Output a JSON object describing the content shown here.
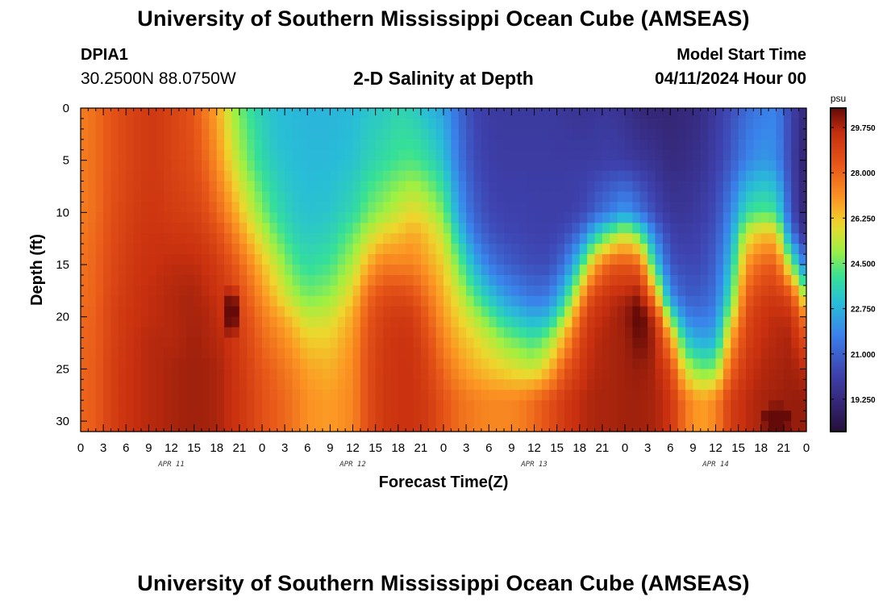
{
  "header": {
    "title": "University of Southern Mississippi Ocean Cube (AMSEAS)",
    "station": "DPIA1",
    "coordinates": "30.2500N  88.0750W",
    "subtitle": "2-D Salinity at Depth",
    "model_start_label": "Model Start Time",
    "model_start_value": "04/11/2024 Hour 00"
  },
  "footer": {
    "title": "University of Southern Mississippi Ocean Cube (AMSEAS)"
  },
  "chart_data": {
    "type": "heatmap",
    "title": "2-D Salinity at Depth",
    "xlabel": "Forecast Time(Z)",
    "ylabel": "Depth (ft)",
    "xlim": [
      0,
      96
    ],
    "ylim": [
      31,
      0
    ],
    "x_major_step": 3,
    "x_tick_labels": [
      "0",
      "3",
      "6",
      "9",
      "12",
      "15",
      "18",
      "21",
      "0",
      "3",
      "6",
      "9",
      "12",
      "15",
      "18",
      "21",
      "0",
      "3",
      "6",
      "9",
      "12",
      "15",
      "18",
      "21",
      "0",
      "3",
      "6",
      "9",
      "12",
      "15",
      "18",
      "21",
      "0"
    ],
    "date_labels": [
      {
        "hour": 12,
        "text": "APR 11"
      },
      {
        "hour": 36,
        "text": "APR 12"
      },
      {
        "hour": 60,
        "text": "APR 13"
      },
      {
        "hour": 84,
        "text": "APR 14"
      }
    ],
    "y_ticks": [
      0,
      5,
      10,
      15,
      20,
      25,
      30
    ],
    "y_tick_labels": [
      "0",
      "5",
      "10",
      "15",
      "20",
      "25",
      "30"
    ],
    "colorbar": {
      "unit": "psu",
      "range": [
        18.0,
        30.5
      ],
      "ticks": [
        29.75,
        28.0,
        26.25,
        24.5,
        22.75,
        21.0,
        19.25
      ],
      "tick_labels": [
        "29.750",
        "28.000",
        "26.250",
        "24.500",
        "22.750",
        "21.000",
        "19.250"
      ]
    },
    "grid": {
      "times": [
        0,
        2,
        4,
        6,
        8,
        10,
        12,
        14,
        15,
        16,
        18,
        20,
        22,
        24,
        26,
        28,
        30,
        33,
        36,
        38,
        40,
        42,
        44,
        46,
        48,
        50,
        52,
        54,
        56,
        58,
        60,
        62,
        64,
        66,
        67,
        68,
        70,
        72,
        74,
        76,
        78,
        80,
        82,
        84,
        86,
        88,
        90,
        92,
        94,
        96
      ],
      "depths": [
        0,
        5,
        10,
        12,
        15,
        18,
        20,
        22,
        25,
        28,
        31
      ],
      "salinity": [
        [
          27.5,
          27.5,
          27.5,
          27.6,
          27.7,
          27.8,
          27.9,
          28.0,
          28.0,
          28.0,
          28.0
        ],
        [
          27.8,
          27.8,
          27.8,
          27.9,
          28.0,
          28.0,
          28.1,
          28.1,
          28.2,
          28.2,
          28.2
        ],
        [
          28.4,
          28.4,
          28.5,
          28.6,
          28.7,
          28.8,
          28.9,
          28.9,
          29.0,
          29.0,
          29.0
        ],
        [
          28.8,
          28.8,
          28.9,
          29.0,
          29.1,
          29.2,
          29.3,
          29.3,
          29.4,
          29.4,
          29.4
        ],
        [
          29.1,
          29.1,
          29.2,
          29.3,
          29.4,
          29.5,
          29.5,
          29.6,
          29.6,
          29.6,
          29.6
        ],
        [
          29.2,
          29.2,
          29.3,
          29.4,
          29.5,
          29.6,
          29.6,
          29.7,
          29.7,
          29.7,
          29.7
        ],
        [
          28.9,
          28.9,
          29.1,
          29.3,
          29.6,
          29.7,
          29.7,
          29.7,
          29.8,
          29.8,
          29.8
        ],
        [
          28.6,
          28.7,
          29.0,
          29.3,
          29.6,
          29.8,
          29.8,
          29.8,
          29.9,
          29.9,
          29.9
        ],
        [
          28.3,
          28.5,
          28.9,
          29.2,
          29.6,
          29.8,
          29.8,
          29.9,
          29.9,
          29.9,
          29.9
        ],
        [
          27.8,
          28.2,
          28.8,
          29.1,
          29.5,
          29.7,
          29.8,
          29.8,
          29.9,
          29.9,
          29.9
        ],
        [
          26.8,
          27.2,
          28.0,
          28.6,
          29.2,
          29.5,
          29.6,
          29.7,
          29.8,
          29.8,
          29.8
        ],
        [
          25.2,
          25.8,
          27.0,
          27.6,
          28.5,
          29.0,
          29.2,
          29.4,
          29.5,
          29.5,
          29.5
        ],
        [
          24.1,
          24.6,
          25.8,
          26.5,
          27.5,
          28.2,
          28.6,
          28.8,
          29.0,
          29.1,
          29.1
        ],
        [
          23.4,
          23.7,
          24.7,
          25.4,
          26.4,
          27.1,
          27.6,
          27.9,
          28.3,
          28.5,
          28.5
        ],
        [
          23.0,
          23.2,
          23.8,
          24.4,
          25.4,
          26.2,
          26.9,
          27.4,
          27.9,
          28.1,
          28.1
        ],
        [
          22.9,
          23.0,
          23.3,
          23.6,
          24.3,
          25.2,
          26.2,
          26.8,
          27.4,
          27.7,
          27.7
        ],
        [
          22.8,
          22.9,
          23.1,
          23.3,
          23.8,
          24.6,
          25.4,
          26.1,
          26.8,
          27.1,
          27.1
        ],
        [
          22.8,
          22.9,
          23.2,
          23.5,
          24.1,
          24.9,
          25.6,
          26.1,
          26.6,
          26.9,
          26.9
        ],
        [
          22.9,
          23.1,
          23.7,
          24.4,
          25.2,
          26.1,
          26.7,
          27.0,
          27.2,
          27.3,
          27.3
        ],
        [
          23.2,
          23.5,
          24.5,
          25.3,
          26.6,
          27.9,
          28.3,
          28.5,
          28.6,
          28.6,
          28.6
        ],
        [
          23.3,
          23.8,
          25.0,
          26.0,
          27.5,
          28.6,
          29.0,
          29.1,
          29.2,
          29.2,
          29.2
        ],
        [
          23.6,
          24.1,
          25.5,
          26.3,
          27.4,
          28.8,
          29.2,
          29.4,
          29.4,
          29.4,
          29.4
        ],
        [
          23.4,
          24.2,
          26.0,
          26.7,
          27.4,
          28.5,
          29.1,
          29.3,
          29.4,
          29.4,
          29.4
        ],
        [
          22.9,
          23.8,
          25.5,
          26.2,
          26.8,
          27.6,
          28.1,
          28.5,
          28.9,
          29.1,
          29.1
        ],
        [
          22.4,
          23.1,
          24.6,
          25.4,
          26.1,
          26.6,
          26.9,
          27.3,
          27.9,
          28.4,
          28.4
        ],
        [
          21.2,
          21.5,
          22.4,
          23.3,
          24.6,
          25.6,
          26.1,
          26.5,
          27.1,
          27.8,
          27.8
        ],
        [
          20.3,
          20.5,
          21.0,
          21.5,
          22.8,
          24.3,
          25.3,
          26.0,
          26.6,
          27.5,
          27.5
        ],
        [
          20.0,
          20.1,
          20.4,
          20.7,
          21.6,
          23.2,
          24.4,
          25.4,
          26.3,
          27.3,
          27.3
        ],
        [
          19.9,
          20.0,
          20.2,
          20.4,
          21.0,
          22.3,
          23.5,
          24.7,
          26.0,
          27.3,
          27.3
        ],
        [
          19.9,
          20.0,
          20.2,
          20.3,
          20.7,
          21.8,
          23.0,
          24.3,
          25.7,
          27.4,
          27.4
        ],
        [
          19.9,
          20.0,
          20.1,
          20.2,
          20.5,
          21.4,
          22.6,
          23.9,
          25.5,
          27.9,
          27.9
        ],
        [
          19.9,
          20.0,
          20.1,
          20.2,
          20.5,
          21.6,
          23.0,
          24.7,
          26.4,
          28.5,
          28.5
        ],
        [
          19.8,
          20.0,
          20.1,
          20.4,
          21.4,
          23.3,
          25.0,
          26.6,
          28.2,
          29.2,
          29.2
        ],
        [
          19.7,
          20.0,
          20.3,
          21.2,
          23.6,
          26.3,
          27.8,
          28.6,
          29.2,
          29.6,
          29.6
        ],
        [
          19.7,
          20.0,
          20.5,
          22.1,
          25.3,
          28.0,
          29.0,
          29.3,
          29.5,
          29.7,
          29.7
        ],
        [
          19.8,
          20.0,
          21.0,
          23.1,
          26.8,
          28.9,
          29.4,
          29.6,
          29.7,
          29.8,
          29.8
        ],
        [
          19.8,
          20.1,
          21.6,
          24.4,
          28.2,
          29.5,
          29.7,
          29.8,
          29.8,
          29.8,
          29.8
        ],
        [
          19.6,
          20.0,
          22.3,
          25.5,
          28.4,
          29.7,
          30.0,
          29.9,
          29.9,
          29.9,
          29.9
        ],
        [
          19.2,
          19.8,
          21.4,
          24.2,
          28.0,
          30.1,
          30.8,
          30.5,
          30.0,
          29.9,
          29.9
        ],
        [
          19.1,
          19.6,
          20.4,
          21.5,
          23.5,
          27.0,
          29.3,
          29.8,
          29.8,
          29.8,
          29.8
        ],
        [
          19.1,
          19.3,
          19.8,
          20.2,
          20.7,
          22.0,
          24.5,
          27.0,
          28.8,
          29.4,
          29.4
        ],
        [
          19.2,
          19.4,
          19.8,
          20.0,
          20.4,
          20.9,
          21.8,
          23.2,
          25.6,
          27.6,
          27.6
        ],
        [
          19.4,
          19.6,
          20.0,
          20.2,
          20.4,
          20.9,
          21.5,
          22.4,
          24.5,
          26.8,
          26.8
        ],
        [
          19.9,
          20.1,
          20.5,
          20.7,
          21.0,
          21.4,
          21.9,
          22.7,
          24.7,
          27.3,
          27.3
        ],
        [
          20.5,
          20.8,
          21.8,
          22.3,
          23.1,
          24.0,
          25.3,
          26.7,
          28.0,
          29.1,
          29.1
        ],
        [
          21.2,
          21.7,
          23.8,
          25.4,
          27.0,
          28.1,
          28.6,
          28.9,
          29.3,
          29.6,
          29.6
        ],
        [
          21.6,
          22.2,
          24.3,
          26.3,
          28.0,
          29.0,
          29.4,
          29.5,
          29.7,
          29.8,
          29.8
        ],
        [
          21.8,
          22.0,
          24.0,
          26.2,
          28.2,
          29.2,
          29.6,
          29.7,
          29.8,
          29.9,
          29.9
        ],
        [
          20.2,
          20.2,
          20.6,
          21.5,
          24.8,
          28.6,
          29.5,
          29.8,
          29.9,
          30.0,
          30.0
        ],
        [
          19.1,
          18.8,
          18.8,
          19.3,
          21.3,
          24.8,
          27.2,
          28.4,
          29.6,
          30.0,
          30.0
        ]
      ],
      "hotspots": [
        {
          "t": 20,
          "d": 19.5,
          "r_t": 0.9,
          "r_d": 3.5,
          "value": 31.6
        },
        {
          "t": 92,
          "d": 29.8,
          "r_t": 2.2,
          "r_d": 1.6,
          "value": 31.4
        }
      ]
    }
  }
}
